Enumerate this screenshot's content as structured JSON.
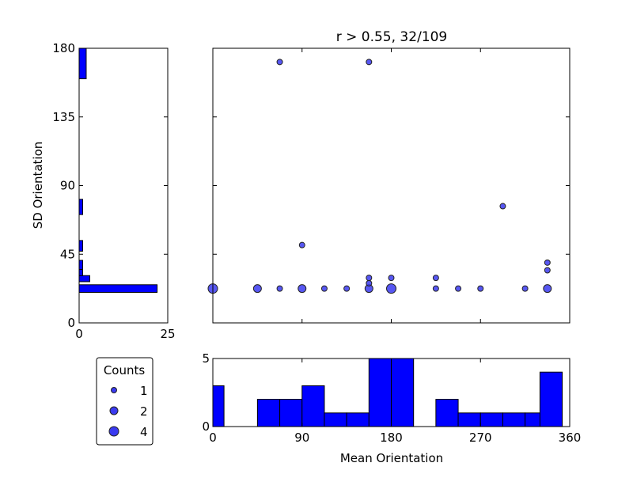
{
  "chart_data": [
    {
      "id": "scatter",
      "type": "scatter",
      "title": "r > 0.55, 32/109",
      "xlim": [
        0,
        360
      ],
      "ylim": [
        0,
        180
      ],
      "x_ticks": [
        0,
        90,
        180,
        270,
        360
      ],
      "y_ticks": [
        0,
        45,
        90,
        135,
        180
      ],
      "marker_color": "#3a3af0",
      "points": [
        {
          "x": 0,
          "y": 22.5,
          "count": 4
        },
        {
          "x": 45,
          "y": 22.5,
          "count": 2
        },
        {
          "x": 67.5,
          "y": 22.5,
          "count": 1
        },
        {
          "x": 90,
          "y": 22.5,
          "count": 2
        },
        {
          "x": 112.5,
          "y": 22.5,
          "count": 1
        },
        {
          "x": 135,
          "y": 22.5,
          "count": 1
        },
        {
          "x": 157.5,
          "y": 22.5,
          "count": 2
        },
        {
          "x": 180,
          "y": 22.5,
          "count": 4
        },
        {
          "x": 225,
          "y": 22.5,
          "count": 1
        },
        {
          "x": 247.5,
          "y": 22.5,
          "count": 1
        },
        {
          "x": 270,
          "y": 22.5,
          "count": 1
        },
        {
          "x": 315,
          "y": 22.5,
          "count": 1
        },
        {
          "x": 337.5,
          "y": 22.5,
          "count": 2
        },
        {
          "x": 157.5,
          "y": 26,
          "count": 1
        },
        {
          "x": 157.5,
          "y": 29.5,
          "count": 1
        },
        {
          "x": 180,
          "y": 29.5,
          "count": 1
        },
        {
          "x": 225,
          "y": 29.5,
          "count": 1
        },
        {
          "x": 337.5,
          "y": 34.5,
          "count": 1
        },
        {
          "x": 337.5,
          "y": 39.5,
          "count": 1
        },
        {
          "x": 90,
          "y": 51,
          "count": 1
        },
        {
          "x": 292.5,
          "y": 76.5,
          "count": 1
        },
        {
          "x": 67.5,
          "y": 171,
          "count": 1
        },
        {
          "x": 157.5,
          "y": 171,
          "count": 1
        }
      ]
    },
    {
      "id": "x_histogram",
      "type": "bar",
      "xlabel": "Mean Orientation",
      "xlim": [
        0,
        360
      ],
      "ylim": [
        0,
        5
      ],
      "x_ticks": [
        0,
        90,
        180,
        270,
        360
      ],
      "y_ticks": [
        0,
        5
      ],
      "bin_width": 22.5,
      "bin_starts": [
        0,
        45,
        67.5,
        90,
        112.5,
        135,
        157.5,
        180,
        225,
        247.5,
        270,
        292.5,
        315
      ],
      "values": [
        3,
        2,
        2,
        3,
        1,
        1,
        5,
        5,
        2,
        1,
        1,
        1,
        1
      ],
      "extra_bin": {
        "start": 330,
        "value": 4
      },
      "first_bin_width": 11.25,
      "bar_color": "#0000ff"
    },
    {
      "id": "y_histogram",
      "type": "bar",
      "orientation": "horizontal",
      "ylabel": "SD Orientation",
      "xlim": [
        0,
        25
      ],
      "ylim": [
        0,
        180
      ],
      "x_ticks": [
        0,
        25
      ],
      "y_ticks": [
        0,
        45,
        90,
        135,
        180
      ],
      "bins": [
        {
          "y0": 20,
          "y1": 25,
          "value": 22
        },
        {
          "y0": 27,
          "y1": 31,
          "value": 3
        },
        {
          "y0": 31,
          "y1": 35,
          "value": 1
        },
        {
          "y0": 35,
          "y1": 41,
          "value": 1
        },
        {
          "y0": 47,
          "y1": 54,
          "value": 1
        },
        {
          "y0": 71,
          "y1": 81,
          "value": 1
        },
        {
          "y0": 160,
          "y1": 180,
          "value": 2
        }
      ],
      "bar_color": "#0000ff"
    }
  ],
  "legend": {
    "title": "Counts",
    "entries": [
      {
        "label": "1",
        "count": 1
      },
      {
        "label": "2",
        "count": 2
      },
      {
        "label": "4",
        "count": 4
      }
    ]
  }
}
